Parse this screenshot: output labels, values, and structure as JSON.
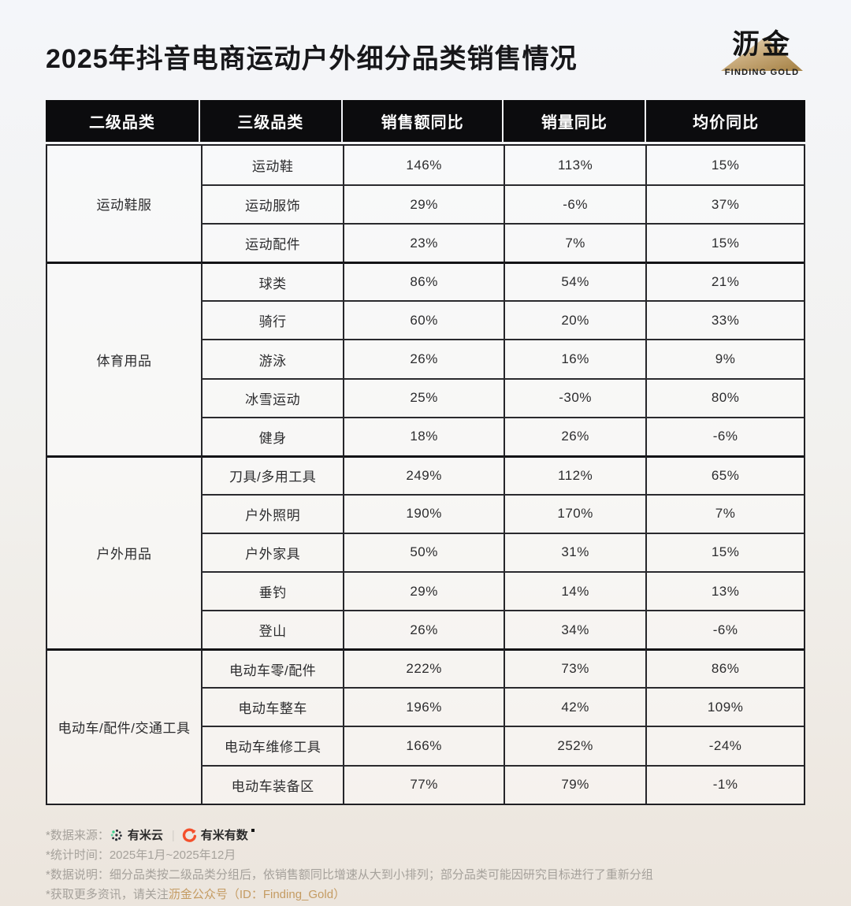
{
  "page": {
    "title": "2025年抖音电商运动户外细分品类销售情况",
    "logo": {
      "name": "沥金",
      "subtitle": "FINDING GOLD"
    }
  },
  "chart_data": {
    "type": "table",
    "columns": [
      "二级品类",
      "三级品类",
      "销售额同比",
      "销量同比",
      "均价同比"
    ],
    "groups": [
      {
        "category": "运动鞋服",
        "rows": [
          {
            "sub": "运动鞋",
            "sales": "146%",
            "volume": "113%",
            "price": "15%"
          },
          {
            "sub": "运动服饰",
            "sales": "29%",
            "volume": "-6%",
            "price": "37%"
          },
          {
            "sub": "运动配件",
            "sales": "23%",
            "volume": "7%",
            "price": "15%"
          }
        ]
      },
      {
        "category": "体育用品",
        "rows": [
          {
            "sub": "球类",
            "sales": "86%",
            "volume": "54%",
            "price": "21%"
          },
          {
            "sub": "骑行",
            "sales": "60%",
            "volume": "20%",
            "price": "33%"
          },
          {
            "sub": "游泳",
            "sales": "26%",
            "volume": "16%",
            "price": "9%"
          },
          {
            "sub": "冰雪运动",
            "sales": "25%",
            "volume": "-30%",
            "price": "80%"
          },
          {
            "sub": "健身",
            "sales": "18%",
            "volume": "26%",
            "price": "-6%"
          }
        ]
      },
      {
        "category": "户外用品",
        "rows": [
          {
            "sub": "刀具/多用工具",
            "sales": "249%",
            "volume": "112%",
            "price": "65%"
          },
          {
            "sub": "户外照明",
            "sales": "190%",
            "volume": "170%",
            "price": "7%"
          },
          {
            "sub": "户外家具",
            "sales": "50%",
            "volume": "31%",
            "price": "15%"
          },
          {
            "sub": "垂钓",
            "sales": "29%",
            "volume": "14%",
            "price": "13%"
          },
          {
            "sub": "登山",
            "sales": "26%",
            "volume": "34%",
            "price": "-6%"
          }
        ]
      },
      {
        "category": "电动车/配件/交通工具",
        "rows": [
          {
            "sub": "电动车零/配件",
            "sales": "222%",
            "volume": "73%",
            "price": "86%"
          },
          {
            "sub": "电动车整车",
            "sales": "196%",
            "volume": "42%",
            "price": "109%"
          },
          {
            "sub": "电动车维修工具",
            "sales": "166%",
            "volume": "252%",
            "price": "-24%"
          },
          {
            "sub": "电动车装备区",
            "sales": "77%",
            "volume": "79%",
            "price": "-1%"
          }
        ]
      }
    ]
  },
  "footer": {
    "source_label": "*数据来源：",
    "source_1": "有米云",
    "source_divider": "|",
    "source_2": "有米有数",
    "period": "*统计时间：2025年1月~2025年12月",
    "note": "*数据说明：细分品类按二级品类分组后，依销售额同比增速从大到小排列；部分品类可能因研究目标进行了重新分组",
    "more_prefix": "*获取更多资讯，请关注",
    "more_link": "沥金公众号（ID：Finding_Gold）"
  },
  "colors": {
    "accent_gold": "#c49b62",
    "header_bg": "#0c0c0e",
    "triangle_gold_light": "#e9dcc0",
    "triangle_gold_dark": "#a8854a",
    "youmiyun_green": "#3ecf8e",
    "youmiyoushu_orange": "#f4502c"
  }
}
